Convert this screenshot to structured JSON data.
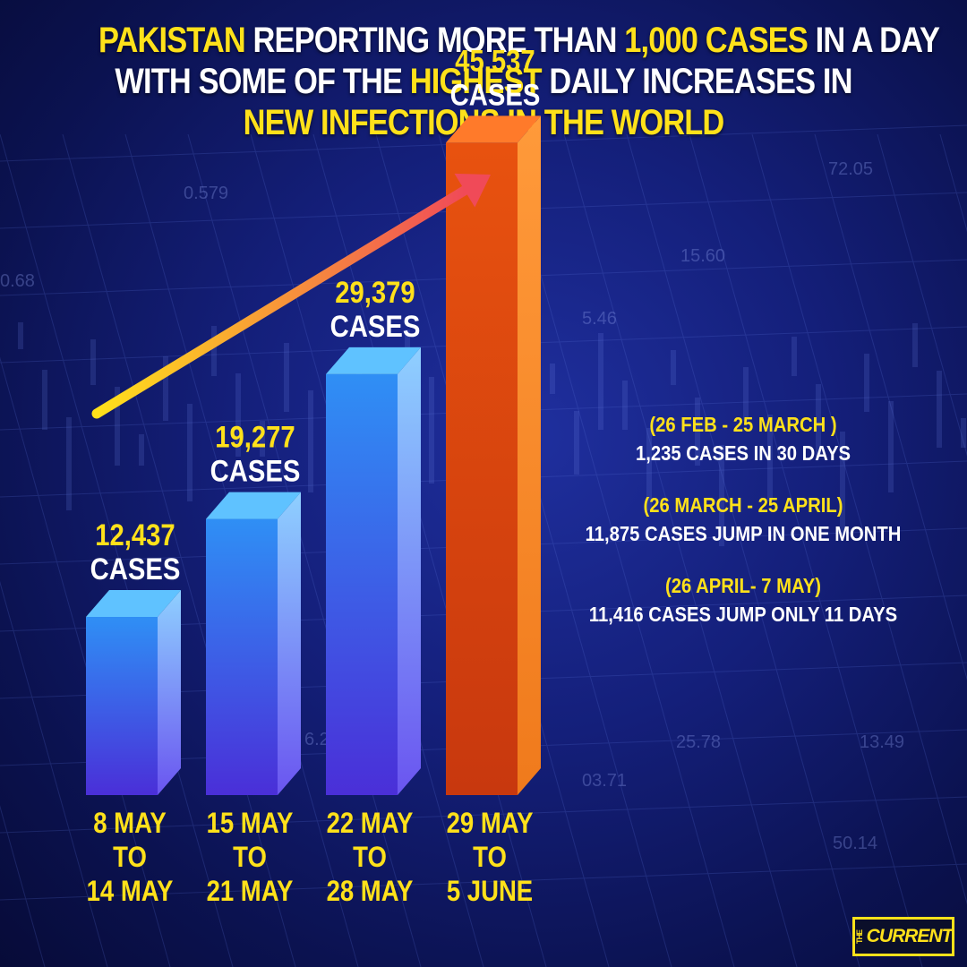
{
  "title": {
    "lines": [
      [
        {
          "text": "PAKISTAN",
          "hl": true
        },
        {
          "text": " REPORTING MORE THAN ",
          "hl": false
        },
        {
          "text": "1,000 CASES",
          "hl": true
        },
        {
          "text": " IN A DAY",
          "hl": false
        }
      ],
      [
        {
          "text": "WITH SOME OF THE ",
          "hl": false
        },
        {
          "text": "HIGHEST",
          "hl": true
        },
        {
          "text": " DAILY INCREASES IN",
          "hl": false
        }
      ],
      [
        {
          "text": "NEW INFECTIONS IN THE WORLD",
          "hl": true
        }
      ]
    ]
  },
  "chart_data": {
    "type": "bar",
    "categories": [
      "8 MAY\nTO\n14 MAY",
      "15 MAY\nTO\n21 MAY",
      "22 MAY\nTO\n28 MAY",
      "29 MAY\nTO\n5 JUNE"
    ],
    "values": [
      12437,
      19277,
      29379,
      45537
    ],
    "data_labels": [
      "12,437",
      "19,277",
      "29,379",
      "45,537"
    ],
    "unit_label": "CASES",
    "highlight_index": 3,
    "title": "",
    "xlabel": "",
    "ylabel": "",
    "ylim": [
      0,
      48000
    ],
    "grid": false,
    "legend": "none"
  },
  "notes": [
    {
      "period": "(26 FEB - 25 MARCH )",
      "desc": "1,235 CASES IN 30 DAYS"
    },
    {
      "period": "(26 MARCH - 25 APRIL)",
      "desc": "11,875 CASES JUMP IN ONE MONTH"
    },
    {
      "period": "(26 APRIL- 7 MAY)",
      "desc": "11,416 CASES JUMP ONLY 11 DAYS"
    }
  ],
  "logo": {
    "small": "THE",
    "main": "CURRENT"
  },
  "colors": {
    "bar": "#2f8ff5",
    "bar_bottom": "#4a2fd8",
    "bar_highlight": "#e04a12",
    "label": "#ffe11a",
    "text": "#ffffff",
    "arrow_start": "#ffe11a",
    "arrow_end": "#f04a58"
  },
  "background_numbers": [
    "0.579",
    "72.05",
    "0.68",
    "5.46",
    "15.60",
    "25.78",
    "13.49",
    "50.14",
    "03.71",
    "6.2"
  ]
}
